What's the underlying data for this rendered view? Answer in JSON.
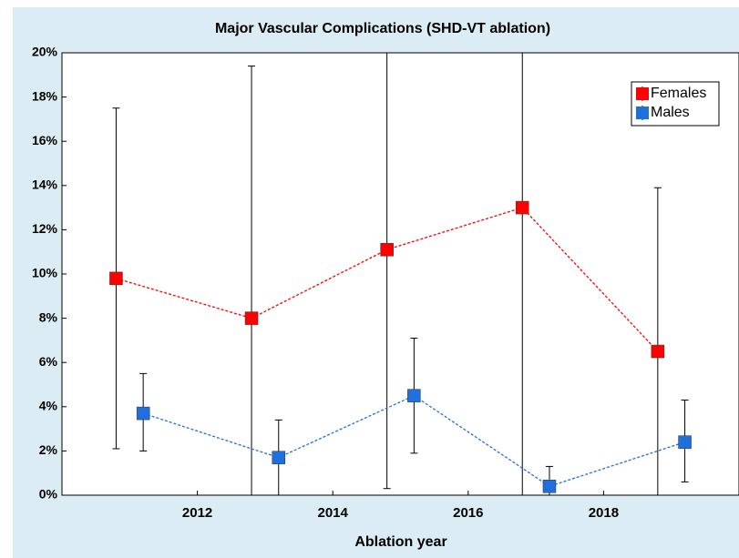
{
  "chart_data": {
    "type": "line",
    "title": "Major Vascular Complications (SHD-VT ablation)",
    "x_label": "Ablation year",
    "xlim": [
      2010,
      2020
    ],
    "xticks": [
      2012,
      2014,
      2016,
      2018
    ],
    "ylim": [
      0,
      20
    ],
    "yticks": [
      {
        "value": 0,
        "label": "0%"
      },
      {
        "value": 2,
        "label": "2%"
      },
      {
        "value": 4,
        "label": "4%"
      },
      {
        "value": 6,
        "label": "6%"
      },
      {
        "value": 8,
        "label": "8%"
      },
      {
        "value": 10,
        "label": "10%"
      },
      {
        "value": 12,
        "label": "12%"
      },
      {
        "value": 14,
        "label": "14%"
      },
      {
        "value": 16,
        "label": "16%"
      },
      {
        "value": 18,
        "label": "18%"
      },
      {
        "value": 20,
        "label": "20%"
      }
    ],
    "legend": "upper right",
    "series": [
      {
        "name": "Females",
        "color": "#ff0000",
        "x": [
          2010.8,
          2012.8,
          2014.8,
          2016.8,
          2018.8
        ],
        "values": [
          9.8,
          8.0,
          11.1,
          13.0,
          6.5
        ],
        "lower": [
          2.1,
          0,
          0.3,
          0,
          0
        ],
        "upper": [
          17.5,
          19.4,
          20,
          20,
          13.9
        ]
      },
      {
        "name": "Males",
        "color": "#1f6fdc",
        "x": [
          2011.2,
          2013.2,
          2015.2,
          2017.2,
          2019.2
        ],
        "values": [
          3.7,
          1.7,
          4.5,
          0.4,
          2.4
        ],
        "lower": [
          2.0,
          0,
          1.9,
          0,
          0.6
        ],
        "upper": [
          5.5,
          3.4,
          7.1,
          1.3,
          4.3
        ]
      }
    ]
  }
}
